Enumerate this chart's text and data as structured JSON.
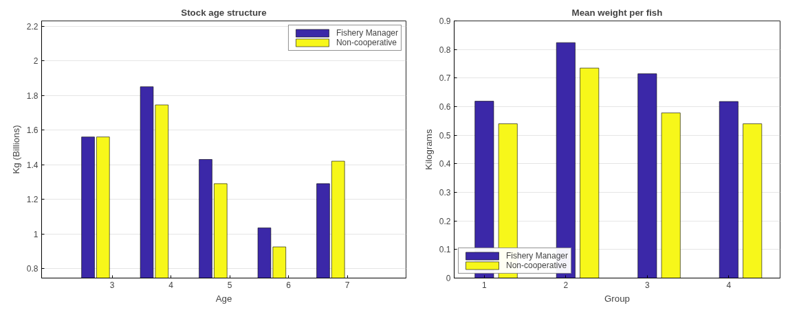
{
  "chart_data": [
    {
      "type": "bar",
      "title": "Stock age structure",
      "xlabel": "Age",
      "ylabel": "Kg (Billions)",
      "x": [
        3,
        4,
        5,
        6,
        7
      ],
      "xlim": [
        1.8,
        8
      ],
      "xticks": [
        3,
        4,
        5,
        6,
        7
      ],
      "ylim": [
        0.745,
        2.23
      ],
      "yticks": [
        0.8,
        1,
        1.2,
        1.4,
        1.6,
        1.8,
        2,
        2.2
      ],
      "grid": "y",
      "legend": "top right",
      "series": [
        {
          "name": "Fishery Manager",
          "color": "#3b28a8",
          "values": [
            1.56,
            1.85,
            1.43,
            1.035,
            1.29
          ]
        },
        {
          "name": "Non-cooperative",
          "color": "#f7f71a",
          "values": [
            1.56,
            1.745,
            1.29,
            0.925,
            1.42
          ]
        }
      ]
    },
    {
      "type": "bar",
      "title": "Mean weight per fish",
      "xlabel": "Group",
      "ylabel": "Kilograms",
      "x": [
        1,
        2,
        3,
        4
      ],
      "xlim": [
        0.63,
        4.63
      ],
      "xticks": [
        1,
        2,
        3,
        4
      ],
      "ylim": [
        0,
        0.9
      ],
      "yticks": [
        0,
        0.1,
        0.2,
        0.3,
        0.4,
        0.5,
        0.6,
        0.7,
        0.8,
        0.9
      ],
      "grid": "y",
      "legend": "bottom left",
      "series": [
        {
          "name": "Fishery Manager",
          "color": "#3b28a8",
          "values": [
            0.619,
            0.824,
            0.715,
            0.618
          ]
        },
        {
          "name": "Non-cooperative",
          "color": "#f7f71a",
          "values": [
            0.54,
            0.735,
            0.578,
            0.54
          ]
        }
      ]
    }
  ]
}
